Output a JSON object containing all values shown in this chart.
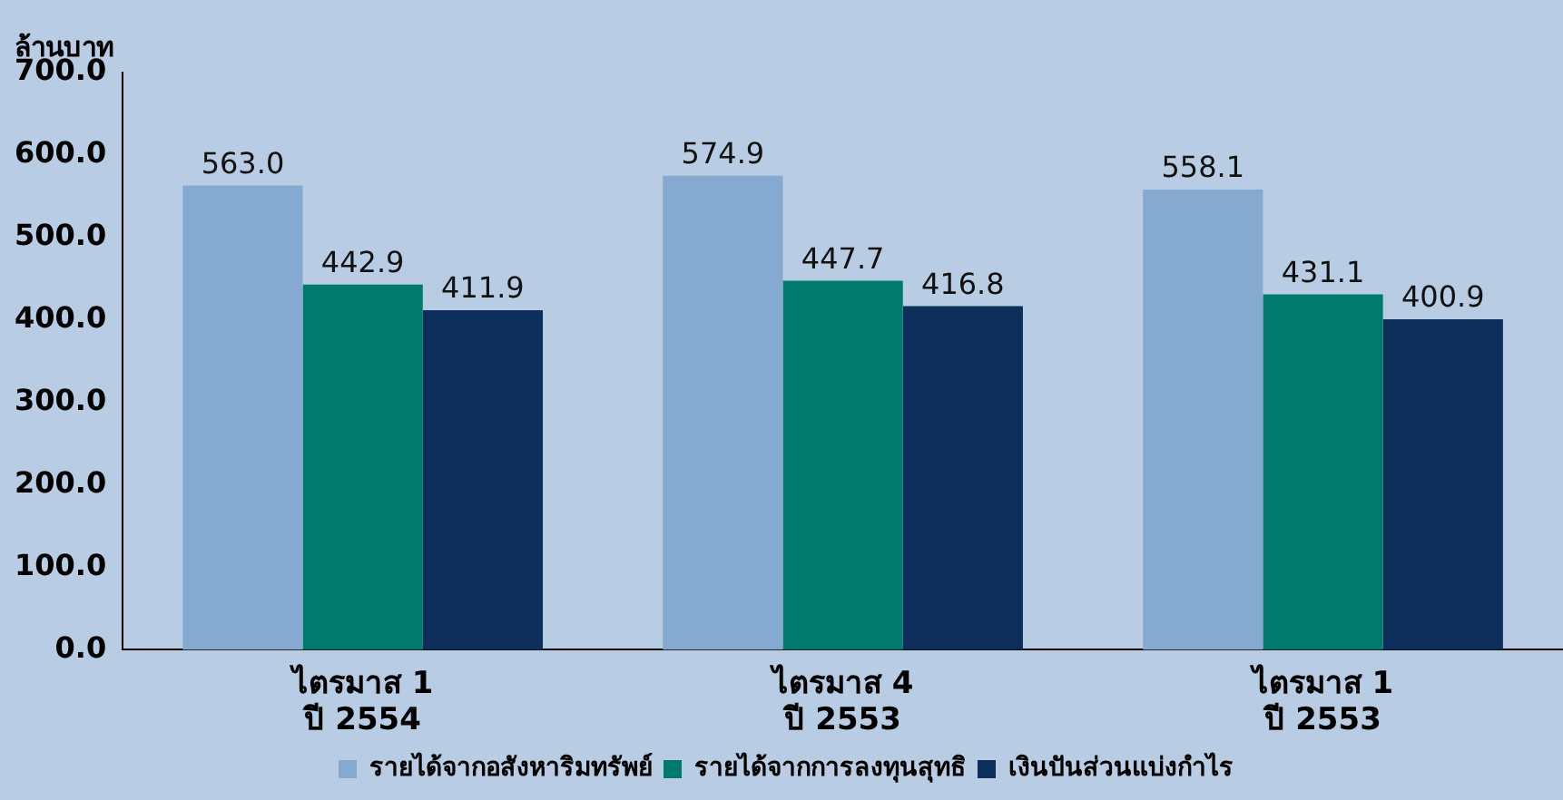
{
  "chart_data": {
    "type": "bar",
    "ylabel": "ล้านบาท",
    "categories": [
      "ไตรมาส 1\nปี 2554",
      "ไตรมาส 4\nปี 2553",
      "ไตรมาส 1\nปี 2553"
    ],
    "series": [
      {
        "name": "รายได้จากอสังหาริมทรัพย์",
        "color": "#86a9d0",
        "values": [
          563.0,
          574.9,
          558.1
        ],
        "value_labels": [
          "563.0",
          "574.9",
          "558.1"
        ]
      },
      {
        "name": "รายได้จากการลงทุนสุทธิ",
        "color": "#007a6c",
        "values": [
          442.9,
          447.7,
          431.1
        ],
        "value_labels": [
          "442.9",
          "447.7",
          "431.1"
        ]
      },
      {
        "name": "เงินปันส่วนแบ่งกำไร",
        "color": "#0d2d5a",
        "values": [
          411.9,
          416.8,
          400.9
        ],
        "value_labels": [
          "411.9",
          "416.8",
          "400.9"
        ]
      }
    ],
    "ylim": [
      0,
      700
    ],
    "yticks": [
      {
        "value": 0,
        "label": "0.0"
      },
      {
        "value": 100,
        "label": "100.0"
      },
      {
        "value": 200,
        "label": "200.0"
      },
      {
        "value": 300,
        "label": "300.0"
      },
      {
        "value": 400,
        "label": "400.0"
      },
      {
        "value": 500,
        "label": "500.0"
      },
      {
        "value": 600,
        "label": "600.0"
      },
      {
        "value": 700,
        "label": "700.0"
      }
    ],
    "grid": false,
    "legend": "bottom"
  }
}
